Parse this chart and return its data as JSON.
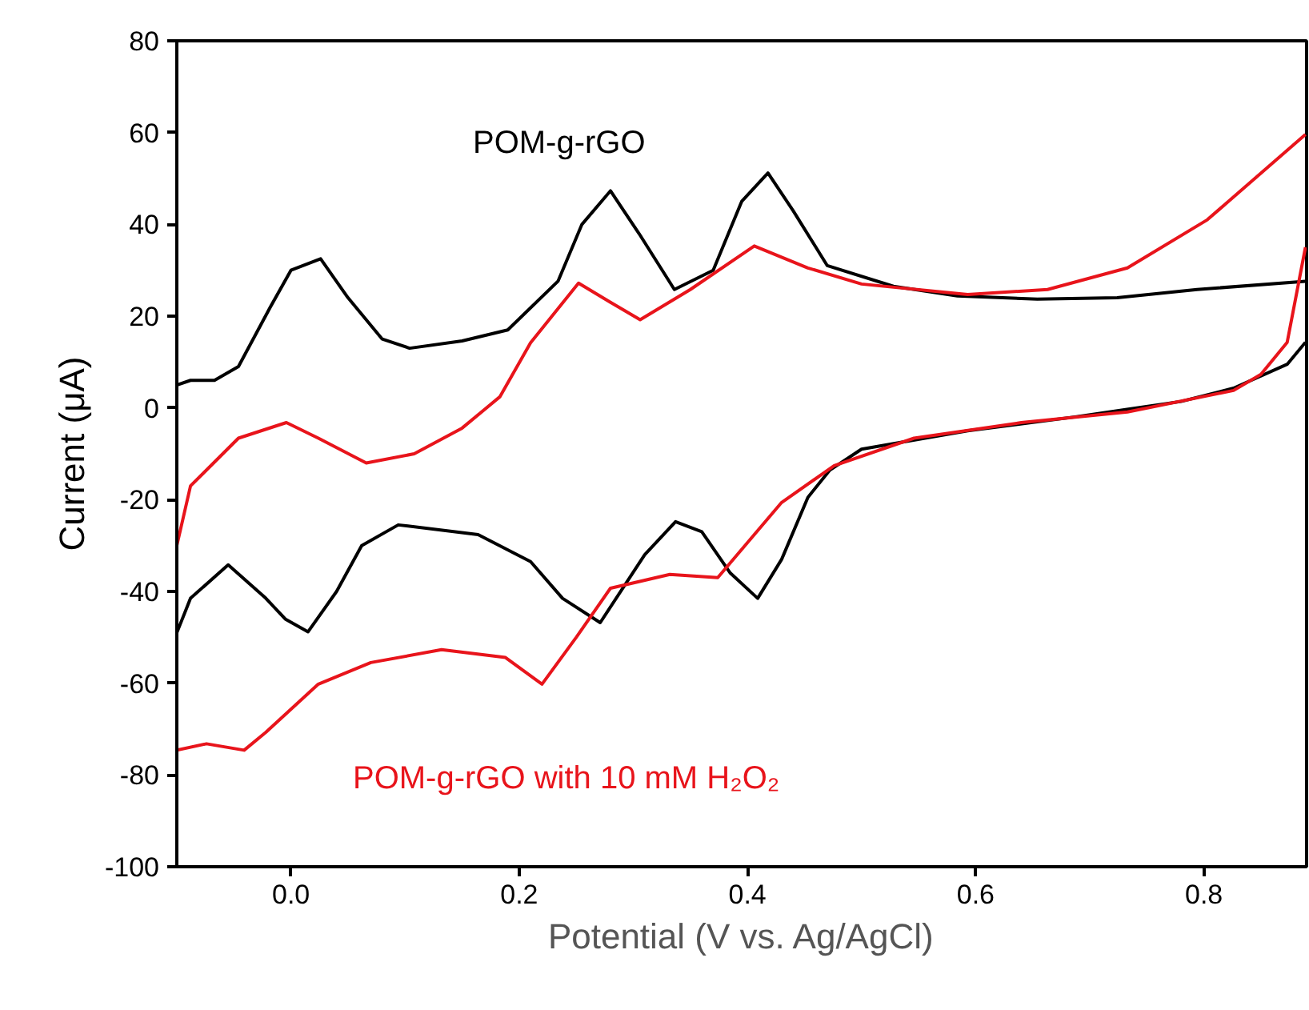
{
  "chart_data": {
    "type": "line",
    "xlabel": "Potential (V vs. Ag/AgCl)",
    "ylabel": "Current (μA)",
    "xlim": [
      -0.1,
      0.89
    ],
    "ylim": [
      -100,
      80
    ],
    "xticks": [
      {
        "value": 0.0,
        "label": "0.0"
      },
      0.2,
      0.4,
      0.6,
      0.8
    ],
    "yticks": [
      -100,
      -80,
      -60,
      -40,
      -20,
      0,
      20,
      40,
      60,
      80
    ],
    "grid": false,
    "marker": "none",
    "line_style": "solid",
    "series": [
      {
        "name": "POM-g-rGO",
        "color": "#000000",
        "x": [
          -0.1,
          -0.1,
          -0.088,
          -0.067,
          -0.046,
          -0.018,
          0.0,
          0.026,
          0.05,
          0.08,
          0.104,
          0.15,
          0.19,
          0.234,
          0.255,
          0.28,
          0.305,
          0.336,
          0.37,
          0.395,
          0.418,
          0.44,
          0.47,
          0.528,
          0.584,
          0.654,
          0.724,
          0.794,
          0.889
        ],
        "values": [
          -49,
          5,
          6,
          6,
          9,
          22,
          30,
          32.5,
          24,
          15,
          13,
          14.6,
          17,
          27.6,
          40,
          47.3,
          38,
          25.8,
          30,
          45,
          51.2,
          43,
          31,
          26.5,
          24.4,
          23.7,
          24,
          25.8,
          27.6
        ]
      },
      {
        "color": "#000000",
        "x": [
          0.889,
          0.873,
          0.826,
          0.78,
          0.686,
          0.593,
          0.5,
          0.472,
          0.453,
          0.43,
          0.409,
          0.385,
          0.36,
          0.337,
          0.31,
          0.271,
          0.238,
          0.21,
          0.164,
          0.094,
          0.062,
          0.04,
          0.015,
          -0.005,
          -0.022,
          -0.055,
          -0.088,
          -0.1
        ],
        "values": [
          14.3,
          9.5,
          4.3,
          1.4,
          -2,
          -5,
          -9,
          -13.6,
          -19.5,
          -33,
          -41.5,
          -36,
          -27,
          -24.8,
          -32,
          -46.8,
          -41.5,
          -33.5,
          -27.6,
          -25.5,
          -30,
          -40,
          -48.8,
          -46,
          -41.5,
          -34.2,
          -41.5,
          -49
        ]
      },
      {
        "color": "#e8141b",
        "x": [
          -0.1,
          -0.1,
          -0.088,
          -0.046,
          -0.004,
          0.024,
          0.066,
          0.108,
          0.15,
          0.183,
          0.21,
          0.252,
          0.28,
          0.306,
          0.35,
          0.406,
          0.453,
          0.5,
          0.593,
          0.663,
          0.733,
          0.803,
          0.889
        ],
        "values": [
          -74.6,
          -30,
          -17,
          -6.6,
          -3.2,
          -6.6,
          -12,
          -10,
          -4.4,
          2.4,
          14.2,
          27.2,
          23,
          19.2,
          25.8,
          35.3,
          30.5,
          27,
          24.7,
          25.8,
          30.5,
          41,
          59.6
        ]
      },
      {
        "name": "POM-g-rGO with 10 mM H₂O₂",
        "color": "#e8141b",
        "x": [
          0.889,
          0.873,
          0.85,
          0.826,
          0.733,
          0.64,
          0.546,
          0.476,
          0.43,
          0.374,
          0.332,
          0.28,
          0.25,
          0.22,
          0.188,
          0.132,
          0.07,
          0.024,
          -0.022,
          -0.041,
          -0.074,
          -0.1
        ],
        "values": [
          35,
          14.3,
          7.3,
          3.8,
          -0.9,
          -3.2,
          -6.6,
          -12.6,
          -20.6,
          -37,
          -36.3,
          -39.3,
          -50,
          -60.2,
          -54.4,
          -52.7,
          -55.5,
          -60.2,
          -70.7,
          -74.6,
          -73.2,
          -74.6
        ]
      }
    ]
  }
}
